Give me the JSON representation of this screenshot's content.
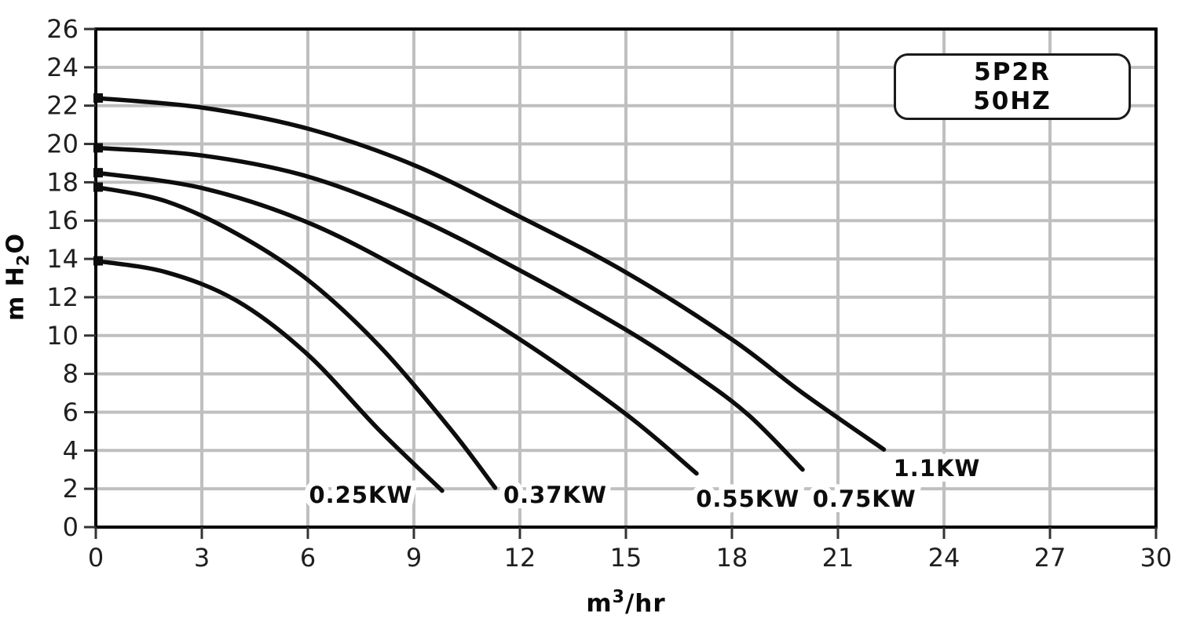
{
  "chart_data": {
    "type": "line",
    "title_box": {
      "lines": [
        "5P2R",
        "50HZ"
      ]
    },
    "xlabel": {
      "base": "m",
      "sup": "3",
      "rest": "/hr"
    },
    "ylabel": {
      "base": "m H",
      "sub": "2",
      "rest": "O"
    },
    "x_axis": {
      "min": 0,
      "max": 30,
      "tick_step": 3,
      "ticks": [
        0,
        3,
        6,
        9,
        12,
        15,
        18,
        21,
        24,
        27,
        30
      ]
    },
    "y_axis": {
      "min": 0,
      "max": 26,
      "tick_step": 2,
      "ticks": [
        0,
        2,
        4,
        6,
        8,
        10,
        12,
        14,
        16,
        18,
        20,
        22,
        24,
        26
      ]
    },
    "grid": true,
    "legend_position": "top-right",
    "series": [
      {
        "name": "0.25KW",
        "points": [
          [
            0,
            13.9
          ],
          [
            2,
            13.3
          ],
          [
            4,
            11.8
          ],
          [
            6,
            9.0
          ],
          [
            8,
            5.1
          ],
          [
            9.8,
            1.9
          ]
        ],
        "label_pos": [
          7.5,
          1.68
        ]
      },
      {
        "name": "0.37KW",
        "points": [
          [
            0,
            17.75
          ],
          [
            2,
            17.0
          ],
          [
            4,
            15.3
          ],
          [
            6,
            12.9
          ],
          [
            8,
            9.5
          ],
          [
            10,
            5.2
          ],
          [
            11.3,
            2.05
          ]
        ],
        "label_pos": [
          13.0,
          1.68
        ]
      },
      {
        "name": "0.55KW",
        "points": [
          [
            0,
            18.5
          ],
          [
            3,
            17.7
          ],
          [
            6,
            15.9
          ],
          [
            9,
            13.1
          ],
          [
            12,
            9.8
          ],
          [
            15,
            5.9
          ],
          [
            17,
            2.8
          ]
        ],
        "label_pos": [
          18.45,
          1.47
        ]
      },
      {
        "name": "0.75KW",
        "points": [
          [
            0,
            19.8
          ],
          [
            3,
            19.4
          ],
          [
            6,
            18.3
          ],
          [
            9,
            16.2
          ],
          [
            12,
            13.4
          ],
          [
            15,
            10.3
          ],
          [
            17,
            7.9
          ],
          [
            18.5,
            5.8
          ],
          [
            20,
            3.0
          ]
        ],
        "label_pos": [
          21.75,
          1.47
        ]
      },
      {
        "name": "1.1KW",
        "points": [
          [
            0,
            22.4
          ],
          [
            3,
            21.9
          ],
          [
            6,
            20.8
          ],
          [
            9,
            18.9
          ],
          [
            12,
            16.2
          ],
          [
            15,
            13.3
          ],
          [
            18,
            9.8
          ],
          [
            20,
            7.0
          ],
          [
            22.3,
            4.05
          ]
        ],
        "label_pos": [
          23.8,
          3.07
        ]
      }
    ],
    "colors": {
      "curve": "#0d0d0d",
      "grid": "#bfbfbf",
      "axis": "#000000",
      "tick": "#333333",
      "tick_text": "#1f1f1f",
      "background": "#ffffff"
    }
  }
}
